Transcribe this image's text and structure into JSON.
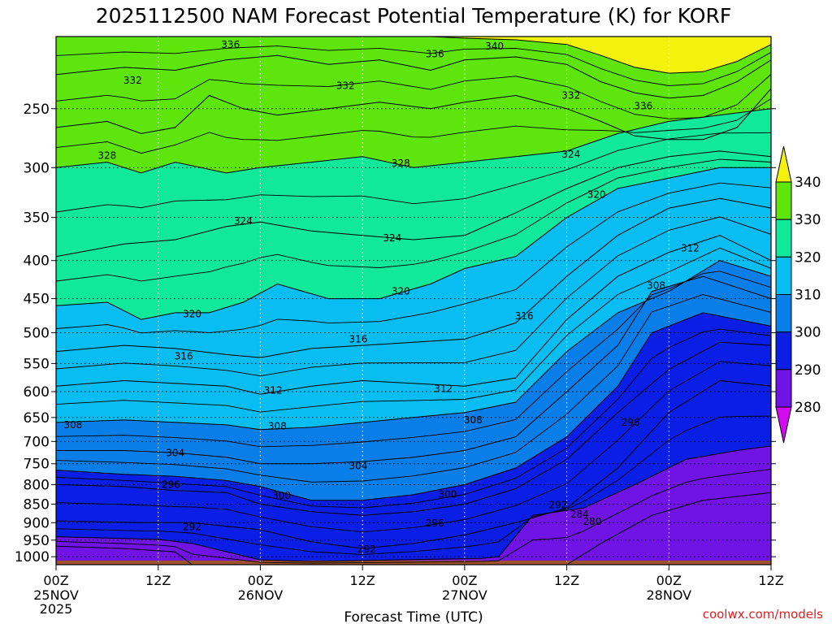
{
  "chart_data": {
    "type": "heatmap",
    "title": "2025112500 NAM Forecast Potential Temperature (K) for KORF",
    "xlabel": "Forecast Time (UTC)",
    "ylabel": "",
    "x_range_hours": [
      0,
      84
    ],
    "y_range_hpa": [
      1025,
      200
    ],
    "y_scale": "log",
    "y_ticks": [
      250,
      300,
      350,
      400,
      450,
      500,
      550,
      600,
      650,
      700,
      750,
      800,
      850,
      900,
      950,
      1000
    ],
    "x_ticks": [
      {
        "hour": 0,
        "label": "00Z",
        "date": "25NOV",
        "year": "2025"
      },
      {
        "hour": 12,
        "label": "12Z",
        "date": "",
        "year": ""
      },
      {
        "hour": 24,
        "label": "00Z",
        "date": "26NOV",
        "year": ""
      },
      {
        "hour": 36,
        "label": "12Z",
        "date": "",
        "year": ""
      },
      {
        "hour": 48,
        "label": "00Z",
        "date": "27NOV",
        "year": ""
      },
      {
        "hour": 60,
        "label": "12Z",
        "date": "",
        "year": ""
      },
      {
        "hour": 72,
        "label": "00Z",
        "date": "28NOV",
        "year": ""
      },
      {
        "hour": 84,
        "label": "12Z",
        "date": "",
        "year": ""
      }
    ],
    "grid": true,
    "colorbar": {
      "placement": "right",
      "labels": [
        "340",
        "330",
        "320",
        "310",
        "300",
        "290",
        "280"
      ],
      "levels": [
        340,
        330,
        320,
        310,
        300,
        290,
        280
      ],
      "bands": [
        {
          "from": 340,
          "to": 350,
          "color": "#f2f20c"
        },
        {
          "from": 330,
          "to": 340,
          "color": "#5ee60c"
        },
        {
          "from": 320,
          "to": 330,
          "color": "#10e89a"
        },
        {
          "from": 310,
          "to": 320,
          "color": "#08bdf2"
        },
        {
          "from": 300,
          "to": 310,
          "color": "#0a7ee8"
        },
        {
          "from": 290,
          "to": 300,
          "color": "#0a1ee6"
        },
        {
          "from": 280,
          "to": 290,
          "color": "#7014e6"
        },
        {
          "from": 270,
          "to": 280,
          "color": "#d20af0"
        }
      ]
    },
    "ground_color": "#a0522d",
    "contour_interval_k": 2,
    "isentropes": [
      {
        "theta": 284,
        "points": [
          [
            0,
            968
          ],
          [
            8,
            975
          ],
          [
            14,
            985
          ],
          [
            16,
            1025
          ],
          [
            60,
            1025
          ],
          [
            64,
            960
          ],
          [
            70,
            880
          ],
          [
            76,
            840
          ],
          [
            84,
            820
          ]
        ]
      },
      {
        "theta": 288,
        "points": [
          [
            0,
            940
          ],
          [
            12,
            948
          ],
          [
            16,
            960
          ],
          [
            24,
            1010
          ],
          [
            30,
            1015
          ],
          [
            40,
            1010
          ],
          [
            50,
            1005
          ],
          [
            52,
            1000
          ],
          [
            56,
            880
          ],
          [
            62,
            860
          ],
          [
            68,
            800
          ],
          [
            74,
            740
          ],
          [
            80,
            720
          ],
          [
            84,
            710
          ]
        ]
      },
      {
        "theta": 292,
        "points": [
          [
            0,
            895
          ],
          [
            10,
            900
          ],
          [
            16,
            900
          ],
          [
            24,
            920
          ],
          [
            30,
            955
          ],
          [
            36,
            975
          ],
          [
            42,
            960
          ],
          [
            48,
            935
          ],
          [
            54,
            900
          ],
          [
            60,
            860
          ],
          [
            66,
            760
          ],
          [
            72,
            640
          ],
          [
            78,
            580
          ],
          [
            84,
            590
          ]
        ]
      },
      {
        "theta": 296,
        "points": [
          [
            0,
            800
          ],
          [
            8,
            805
          ],
          [
            14,
            815
          ],
          [
            20,
            820
          ],
          [
            24,
            850
          ],
          [
            30,
            870
          ],
          [
            36,
            880
          ],
          [
            42,
            870
          ],
          [
            48,
            850
          ],
          [
            54,
            810
          ],
          [
            60,
            740
          ],
          [
            66,
            640
          ],
          [
            72,
            560
          ],
          [
            78,
            515
          ],
          [
            84,
            520
          ]
        ]
      },
      {
        "theta": 300,
        "points": [
          [
            0,
            765
          ],
          [
            8,
            775
          ],
          [
            14,
            780
          ],
          [
            20,
            790
          ],
          [
            24,
            805
          ],
          [
            30,
            840
          ],
          [
            36,
            840
          ],
          [
            42,
            825
          ],
          [
            48,
            800
          ],
          [
            54,
            760
          ],
          [
            60,
            690
          ],
          [
            66,
            590
          ],
          [
            70,
            500
          ],
          [
            76,
            470
          ],
          [
            84,
            490
          ]
        ]
      },
      {
        "theta": 304,
        "points": [
          [
            0,
            720
          ],
          [
            8,
            720
          ],
          [
            14,
            725
          ],
          [
            20,
            735
          ],
          [
            24,
            750
          ],
          [
            30,
            750
          ],
          [
            36,
            745
          ],
          [
            42,
            735
          ],
          [
            48,
            720
          ],
          [
            54,
            690
          ],
          [
            60,
            600
          ],
          [
            66,
            520
          ],
          [
            70,
            440
          ],
          [
            76,
            420
          ],
          [
            84,
            450
          ]
        ]
      },
      {
        "theta": 308,
        "points": [
          [
            0,
            660
          ],
          [
            8,
            655
          ],
          [
            14,
            660
          ],
          [
            20,
            665
          ],
          [
            24,
            675
          ],
          [
            30,
            670
          ],
          [
            36,
            660
          ],
          [
            42,
            650
          ],
          [
            48,
            640
          ],
          [
            54,
            620
          ],
          [
            60,
            530
          ],
          [
            66,
            470
          ],
          [
            72,
            440
          ],
          [
            78,
            400
          ],
          [
            84,
            420
          ]
        ]
      },
      {
        "theta": 312,
        "points": [
          [
            0,
            590
          ],
          [
            8,
            580
          ],
          [
            14,
            585
          ],
          [
            20,
            590
          ],
          [
            24,
            605
          ],
          [
            30,
            590
          ],
          [
            36,
            580
          ],
          [
            42,
            585
          ],
          [
            48,
            590
          ],
          [
            54,
            575
          ],
          [
            60,
            480
          ],
          [
            66,
            420
          ],
          [
            72,
            390
          ],
          [
            78,
            370
          ],
          [
            84,
            400
          ]
        ]
      },
      {
        "theta": 316,
        "points": [
          [
            0,
            530
          ],
          [
            8,
            520
          ],
          [
            14,
            525
          ],
          [
            20,
            535
          ],
          [
            24,
            540
          ],
          [
            30,
            525
          ],
          [
            36,
            520
          ],
          [
            42,
            515
          ],
          [
            48,
            510
          ],
          [
            54,
            485
          ],
          [
            60,
            420
          ],
          [
            66,
            370
          ],
          [
            72,
            340
          ],
          [
            78,
            330
          ],
          [
            84,
            340
          ]
        ]
      },
      {
        "theta": 320,
        "points": [
          [
            0,
            460
          ],
          [
            6,
            455
          ],
          [
            10,
            480
          ],
          [
            14,
            470
          ],
          [
            18,
            470
          ],
          [
            22,
            455
          ],
          [
            26,
            430
          ],
          [
            32,
            450
          ],
          [
            38,
            450
          ],
          [
            44,
            430
          ],
          [
            48,
            410
          ],
          [
            54,
            395
          ],
          [
            60,
            350
          ],
          [
            66,
            320
          ],
          [
            72,
            310
          ],
          [
            78,
            300
          ],
          [
            84,
            300
          ]
        ]
      },
      {
        "theta": 324,
        "points": [
          [
            0,
            395
          ],
          [
            8,
            380
          ],
          [
            14,
            375
          ],
          [
            20,
            360
          ],
          [
            24,
            355
          ],
          [
            30,
            365
          ],
          [
            36,
            370
          ],
          [
            42,
            375
          ],
          [
            48,
            370
          ],
          [
            54,
            345
          ],
          [
            60,
            320
          ],
          [
            66,
            300
          ],
          [
            72,
            290
          ],
          [
            78,
            285
          ],
          [
            84,
            290
          ]
        ]
      },
      {
        "theta": 328,
        "points": [
          [
            0,
            300
          ],
          [
            6,
            295
          ],
          [
            10,
            305
          ],
          [
            14,
            295
          ],
          [
            20,
            305
          ],
          [
            24,
            300
          ],
          [
            30,
            295
          ],
          [
            36,
            290
          ],
          [
            42,
            300
          ],
          [
            48,
            295
          ],
          [
            54,
            290
          ],
          [
            60,
            285
          ],
          [
            66,
            270
          ],
          [
            72,
            260
          ],
          [
            78,
            255
          ],
          [
            84,
            250
          ]
        ]
      },
      {
        "theta": 332,
        "points": [
          [
            0,
            265
          ],
          [
            6,
            260
          ],
          [
            10,
            270
          ],
          [
            14,
            265
          ],
          [
            18,
            240
          ],
          [
            22,
            250
          ],
          [
            26,
            255
          ],
          [
            32,
            250
          ],
          [
            38,
            245
          ],
          [
            44,
            250
          ],
          [
            48,
            245
          ],
          [
            54,
            240
          ],
          [
            60,
            250
          ],
          [
            64,
            260
          ],
          [
            68,
            272
          ],
          [
            72,
            275
          ],
          [
            76,
            275
          ],
          [
            80,
            265
          ],
          [
            84,
            235
          ]
        ]
      },
      {
        "theta": 336,
        "points": [
          [
            0,
            225
          ],
          [
            8,
            220
          ],
          [
            14,
            222
          ],
          [
            20,
            215
          ],
          [
            26,
            212
          ],
          [
            32,
            218
          ],
          [
            38,
            215
          ],
          [
            44,
            222
          ],
          [
            48,
            215
          ],
          [
            54,
            213
          ],
          [
            60,
            218
          ],
          [
            64,
            230
          ],
          [
            68,
            238
          ],
          [
            72,
            242
          ],
          [
            76,
            240
          ],
          [
            80,
            230
          ],
          [
            84,
            215
          ]
        ]
      },
      {
        "theta": 340,
        "points": [
          [
            0,
            200
          ],
          [
            14,
            200
          ],
          [
            24,
            200
          ],
          [
            34,
            200
          ],
          [
            44,
            200
          ],
          [
            48,
            201
          ],
          [
            54,
            202
          ],
          [
            60,
            205
          ],
          [
            64,
            212
          ],
          [
            68,
            220
          ],
          [
            72,
            224
          ],
          [
            76,
            223
          ],
          [
            80,
            216
          ],
          [
            84,
            205
          ]
        ]
      }
    ],
    "contour_labels": [
      {
        "text": "336",
        "hour": 20.5,
        "hpa": 205
      },
      {
        "text": "340",
        "hour": 51.5,
        "hpa": 206
      },
      {
        "text": "336",
        "hour": 44.5,
        "hpa": 211
      },
      {
        "text": "332",
        "hour": 9.0,
        "hpa": 229
      },
      {
        "text": "332",
        "hour": 34.0,
        "hpa": 233
      },
      {
        "text": "332",
        "hour": 60.5,
        "hpa": 240
      },
      {
        "text": "336",
        "hour": 69.0,
        "hpa": 248
      },
      {
        "text": "328",
        "hour": 6.0,
        "hpa": 289
      },
      {
        "text": "328",
        "hour": 40.5,
        "hpa": 296
      },
      {
        "text": "324",
        "hour": 60.5,
        "hpa": 288
      },
      {
        "text": "320",
        "hour": 63.5,
        "hpa": 326
      },
      {
        "text": "324",
        "hour": 22.0,
        "hpa": 354
      },
      {
        "text": "324",
        "hour": 39.5,
        "hpa": 373
      },
      {
        "text": "312",
        "hour": 74.5,
        "hpa": 385
      },
      {
        "text": "308",
        "hour": 70.5,
        "hpa": 432
      },
      {
        "text": "320",
        "hour": 40.5,
        "hpa": 440
      },
      {
        "text": "320",
        "hour": 16.0,
        "hpa": 472
      },
      {
        "text": "316",
        "hour": 55.0,
        "hpa": 475
      },
      {
        "text": "316",
        "hour": 35.5,
        "hpa": 510
      },
      {
        "text": "316",
        "hour": 15.0,
        "hpa": 538
      },
      {
        "text": "312",
        "hour": 25.5,
        "hpa": 598
      },
      {
        "text": "312",
        "hour": 45.5,
        "hpa": 595
      },
      {
        "text": "296",
        "hour": 67.5,
        "hpa": 660
      },
      {
        "text": "308",
        "hour": 49.0,
        "hpa": 655
      },
      {
        "text": "308",
        "hour": 2.0,
        "hpa": 665
      },
      {
        "text": "308",
        "hour": 26.0,
        "hpa": 668
      },
      {
        "text": "304",
        "hour": 14.0,
        "hpa": 725
      },
      {
        "text": "304",
        "hour": 35.5,
        "hpa": 755
      },
      {
        "text": "296",
        "hour": 13.5,
        "hpa": 800
      },
      {
        "text": "300",
        "hour": 26.5,
        "hpa": 828
      },
      {
        "text": "300",
        "hour": 46.0,
        "hpa": 825
      },
      {
        "text": "292",
        "hour": 59.0,
        "hpa": 852
      },
      {
        "text": "284",
        "hour": 61.5,
        "hpa": 877
      },
      {
        "text": "280",
        "hour": 63.0,
        "hpa": 897
      },
      {
        "text": "296",
        "hour": 44.5,
        "hpa": 902
      },
      {
        "text": "292",
        "hour": 16.0,
        "hpa": 912
      },
      {
        "text": "292",
        "hour": 36.5,
        "hpa": 977
      }
    ]
  },
  "credit": "coolwx.com/models"
}
